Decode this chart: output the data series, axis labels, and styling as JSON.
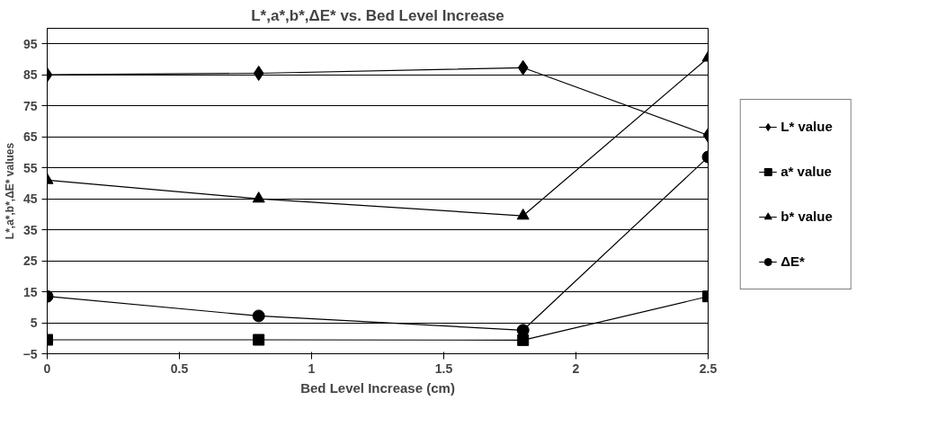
{
  "chart_data": {
    "type": "line",
    "title": "L*,a*,b*,ΔE* vs. Bed Level Increase",
    "xlabel": "Bed Level Increase (cm)",
    "ylabel": "L*,a*,b*,ΔE* values",
    "x": [
      0,
      0.8,
      1.8,
      2.5
    ],
    "series": [
      {
        "name": "L* value",
        "color": "#000000",
        "marker": "diamond",
        "values": [
          85,
          85.5,
          87.3,
          65.5
        ]
      },
      {
        "name": "a* value",
        "color": "#000000",
        "marker": "square",
        "values": [
          -0.5,
          -0.5,
          -0.6,
          13.5
        ]
      },
      {
        "name": "b* value",
        "color": "#000000",
        "marker": "triangle",
        "values": [
          51,
          45,
          39.5,
          90.5
        ]
      },
      {
        "name": "ΔE*",
        "color": "#000000",
        "marker": "circle",
        "values": [
          13.5,
          7.2,
          2.6,
          58.5
        ]
      }
    ],
    "xlim": [
      0,
      2.5
    ],
    "xticks": [
      0,
      0.5,
      1,
      1.5,
      2,
      2.5
    ],
    "ylim": [
      -5,
      100
    ],
    "yticks": [
      -5,
      5,
      15,
      25,
      35,
      45,
      55,
      65,
      75,
      85,
      95
    ],
    "grid": "y",
    "legend": "right",
    "line_style": "solid"
  }
}
